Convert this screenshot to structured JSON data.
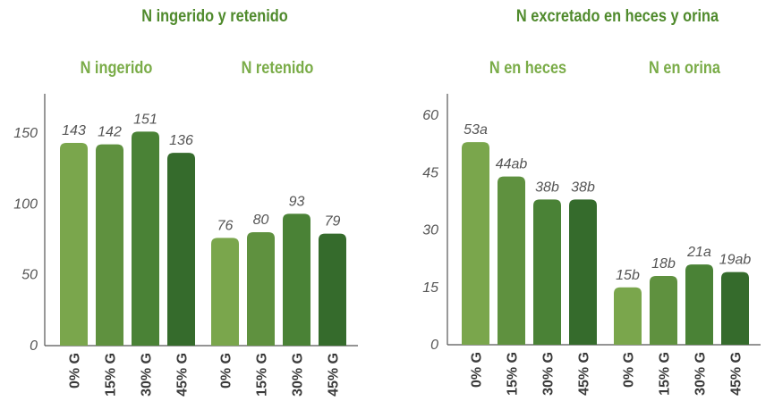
{
  "chart_data": [
    {
      "type": "bar",
      "title": "N ingerido y retenido",
      "categories": [
        "0% G",
        "15% G",
        "30% G",
        "45% G"
      ],
      "series": [
        {
          "name": "N ingerido",
          "values": [
            143,
            142,
            151,
            136
          ],
          "labels": [
            "143",
            "142",
            "151",
            "136"
          ]
        },
        {
          "name": "N retenido",
          "values": [
            76,
            80,
            93,
            79
          ],
          "labels": [
            "76",
            "80",
            "93",
            "79"
          ]
        }
      ],
      "ylim": [
        0,
        170
      ],
      "yticks": [
        0,
        50,
        100,
        150
      ],
      "xlabel": "",
      "ylabel": "",
      "grid": false
    },
    {
      "type": "bar",
      "title": "N excretado en heces y orina",
      "categories": [
        "0% G",
        "15% G",
        "30% G",
        "45% G"
      ],
      "series": [
        {
          "name": "N en heces",
          "values": [
            53,
            44,
            38,
            38
          ],
          "labels": [
            "53a",
            "44ab",
            "38b",
            "38b"
          ]
        },
        {
          "name": "N en orina",
          "values": [
            15,
            18,
            21,
            19
          ],
          "labels": [
            "15b",
            "18b",
            "21a",
            "19ab"
          ]
        }
      ],
      "ylim": [
        0,
        65
      ],
      "yticks": [
        0,
        15,
        30,
        45,
        60
      ],
      "xlabel": "",
      "ylabel": "",
      "grid": false
    }
  ],
  "colors": {
    "bars": [
      "#7aa64c",
      "#5f913f",
      "#4a8236",
      "#356b2c"
    ],
    "axis": "#555555",
    "panel_title": "#4f8a2c",
    "group_title": "#7aac48"
  }
}
